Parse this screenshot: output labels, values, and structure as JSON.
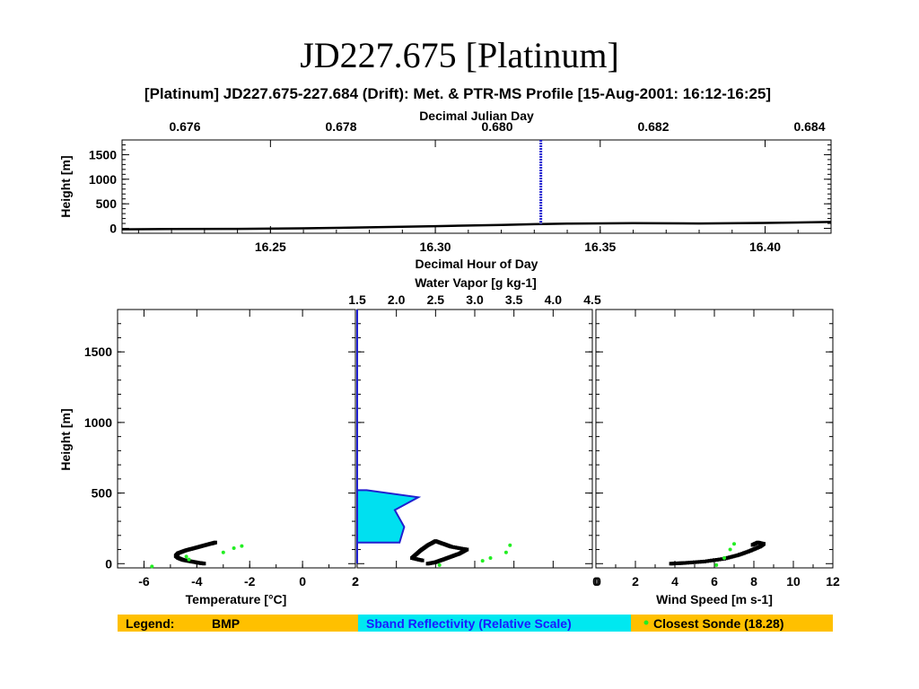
{
  "slide_title": "JD227.675 [Platinum]",
  "colors": {
    "bmp": "#000000",
    "sband_line": "#2020d0",
    "sband_fill": "#00e0f0",
    "sonde": "#22ee22",
    "legend_bg": "#ffc000",
    "legend_sband_bg": "#00e8f0",
    "sband_text": "#1a1aff"
  },
  "figure_title": "[Platinum] JD227.675-227.684 (Drift): Met. & PTR-MS Profile [15-Aug-2001: 16:12-16:25]",
  "legend": {
    "label": "Legend:",
    "bmp": "BMP",
    "sband": "Sband Reflectivity (Relative Scale)",
    "sonde": "Closest Sonde (18.28)"
  },
  "chart_data": [
    {
      "id": "time_series",
      "type": "line",
      "xlabel": "Decimal Hour of Day",
      "x2label": "Decimal Julian Day",
      "ylabel": "Height [m]",
      "xlim": [
        16.205,
        16.42
      ],
      "ylim": [
        -100,
        1800
      ],
      "xticks": [
        "16.25",
        "16.30",
        "16.35",
        "16.40"
      ],
      "x2ticks": [
        "0.676",
        "0.678",
        "0.680",
        "0.682",
        "0.684"
      ],
      "yticks": [
        "0",
        "500",
        "1000",
        "1500"
      ],
      "marker_hour": 16.332,
      "series": [
        {
          "x": [
            16.205,
            16.22,
            16.24,
            16.26,
            16.28,
            16.3,
            16.32,
            16.33,
            16.34,
            16.36,
            16.38,
            16.4,
            16.42
          ],
          "y": [
            -20,
            -15,
            -10,
            0,
            20,
            45,
            70,
            85,
            95,
            105,
            100,
            110,
            130
          ]
        }
      ]
    },
    {
      "id": "temperature",
      "type": "scatter",
      "xlabel": "Temperature [°C]",
      "ylabel": "Height [m]",
      "xlim": [
        -7,
        2
      ],
      "ylim": [
        -30,
        1800
      ],
      "xticks": [
        "-6",
        "-4",
        "-2",
        "0",
        "2"
      ],
      "yticks": [
        "0",
        "500",
        "1000",
        "1500"
      ],
      "bmp": {
        "x": [
          -3.3,
          -3.5,
          -3.8,
          -4.1,
          -4.4,
          -4.7,
          -4.8,
          -4.7,
          -4.5,
          -4.2,
          -3.9,
          -3.7
        ],
        "y": [
          150,
          140,
          125,
          110,
          95,
          75,
          55,
          40,
          25,
          15,
          5,
          0
        ]
      },
      "sonde": {
        "x": [
          -5.7,
          -4.3,
          -4.4,
          -3.0,
          -2.6,
          -2.3
        ],
        "y": [
          -20,
          30,
          50,
          80,
          110,
          125
        ]
      }
    },
    {
      "id": "water_vapor",
      "type": "area",
      "x2label": "Water Vapor [g kg-1]",
      "xlim": [
        1.5,
        4.5
      ],
      "x2ticks": [
        "1.5",
        "2.0",
        "2.5",
        "3.0",
        "3.5",
        "4.0",
        "4.5"
      ],
      "xticks_bottom": [
        "2",
        "0"
      ],
      "bmp": {
        "x": [
          2.4,
          2.5,
          2.6,
          2.7,
          2.8,
          2.9,
          2.7,
          2.6,
          2.5,
          2.4,
          2.3,
          2.2,
          2.35
        ],
        "y": [
          0,
          10,
          30,
          50,
          70,
          100,
          120,
          140,
          160,
          130,
          90,
          40,
          20
        ]
      },
      "sonde": {
        "x": [
          3.1,
          3.2,
          3.4,
          3.45,
          2.55
        ],
        "y": [
          20,
          40,
          80,
          130,
          -10
        ]
      },
      "sband_profile": {
        "reflectivity": [
          0.0,
          0.0,
          0.04,
          0.26,
          0.16,
          0.2,
          0.18,
          0.0,
          0.0
        ],
        "height": [
          1800,
          520,
          520,
          470,
          380,
          260,
          150,
          150,
          0
        ]
      }
    },
    {
      "id": "wind_speed",
      "type": "scatter",
      "xlabel": "Wind Speed [m s-1]",
      "xlim": [
        0,
        12
      ],
      "ylim": [
        -30,
        1800
      ],
      "xticks": [
        "0",
        "2",
        "4",
        "6",
        "8",
        "10",
        "12"
      ],
      "bmp": {
        "x": [
          3.8,
          4.5,
          5.5,
          6.5,
          7.2,
          7.8,
          8.3,
          8.5,
          8.2,
          7.9
        ],
        "y": [
          0,
          5,
          15,
          35,
          60,
          90,
          120,
          140,
          150,
          130
        ]
      },
      "sonde": {
        "x": [
          6.1,
          6.5,
          6.8,
          7.0
        ],
        "y": [
          -10,
          40,
          100,
          140
        ]
      }
    }
  ]
}
